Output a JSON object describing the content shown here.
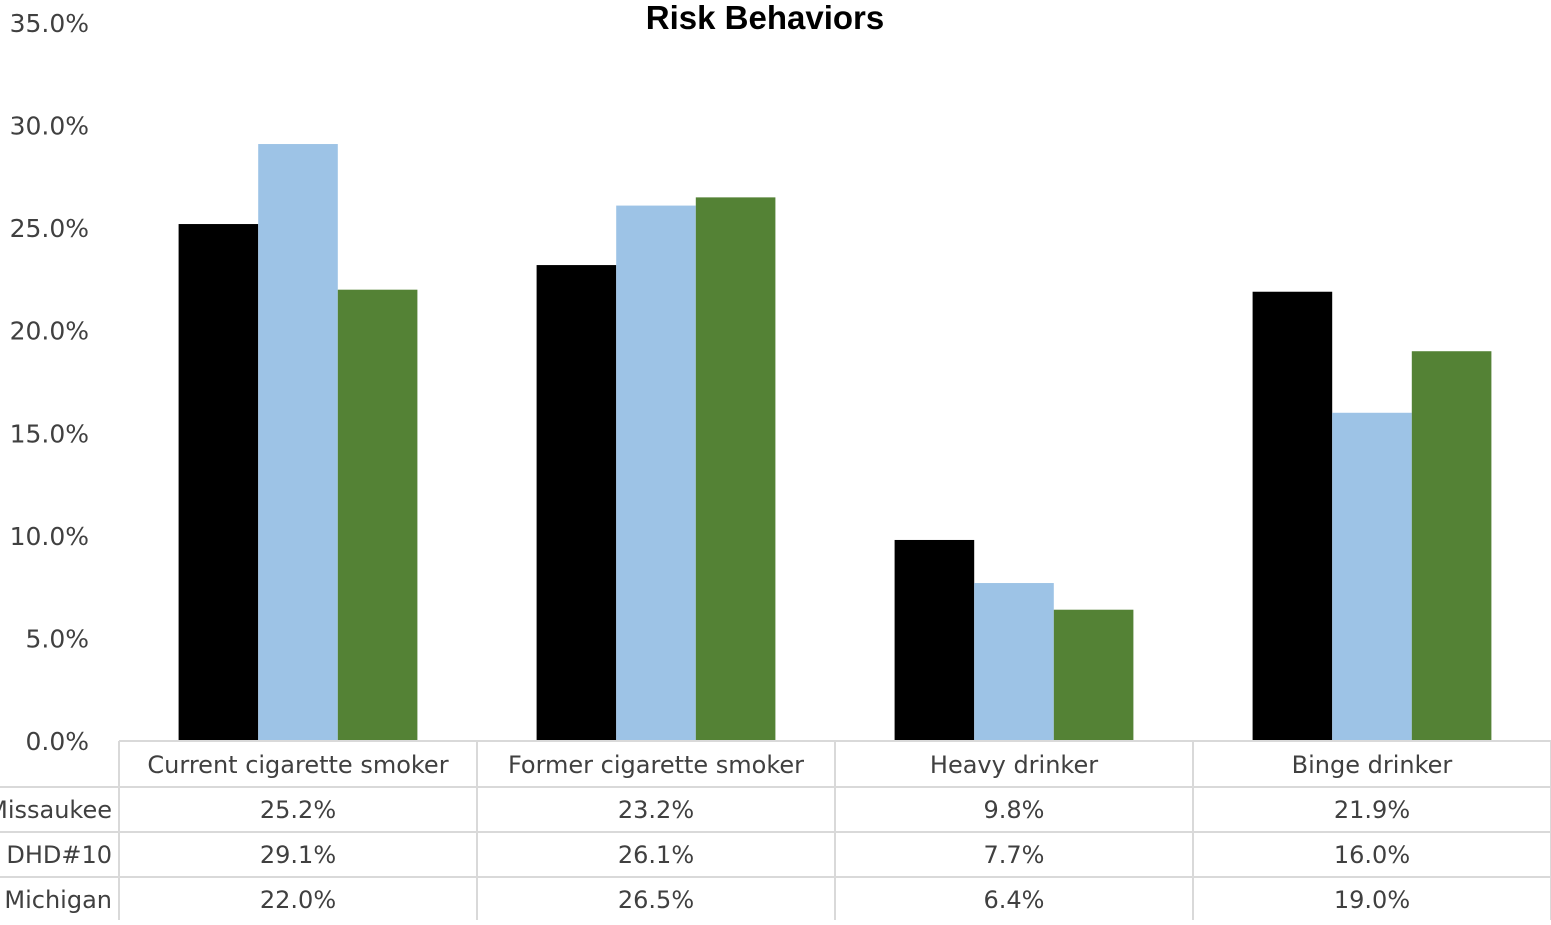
{
  "chart_data": {
    "type": "bar",
    "title": "Risk Behaviors",
    "categories": [
      "Current cigarette smoker",
      "Former cigarette smoker",
      "Heavy drinker",
      "Binge drinker"
    ],
    "series": [
      {
        "name": "Missaukee",
        "values": [
          25.2,
          23.2,
          9.8,
          21.9
        ],
        "color": "#000000",
        "labels": [
          "25.2%",
          "23.2%",
          "9.8%",
          "21.9%"
        ]
      },
      {
        "name": "DHD#10",
        "values": [
          29.1,
          26.1,
          7.7,
          16.0
        ],
        "color": "#9DC3E6",
        "labels": [
          "29.1%",
          "26.1%",
          "7.7%",
          "16.0%"
        ]
      },
      {
        "name": "Michigan",
        "values": [
          22.0,
          26.5,
          6.4,
          19.0
        ],
        "color": "#548235",
        "labels": [
          "22.0%",
          "26.5%",
          "6.4%",
          "19.0%"
        ]
      }
    ],
    "ylim": [
      0,
      35
    ],
    "yticks": [
      0,
      5,
      10,
      15,
      20,
      25,
      30,
      35
    ],
    "ytick_labels": [
      "0.0%",
      "5.0%",
      "10.0%",
      "15.0%",
      "20.0%",
      "25.0%",
      "30.0%",
      "35.0%"
    ],
    "grid": false,
    "legend": "data-table below chart"
  }
}
